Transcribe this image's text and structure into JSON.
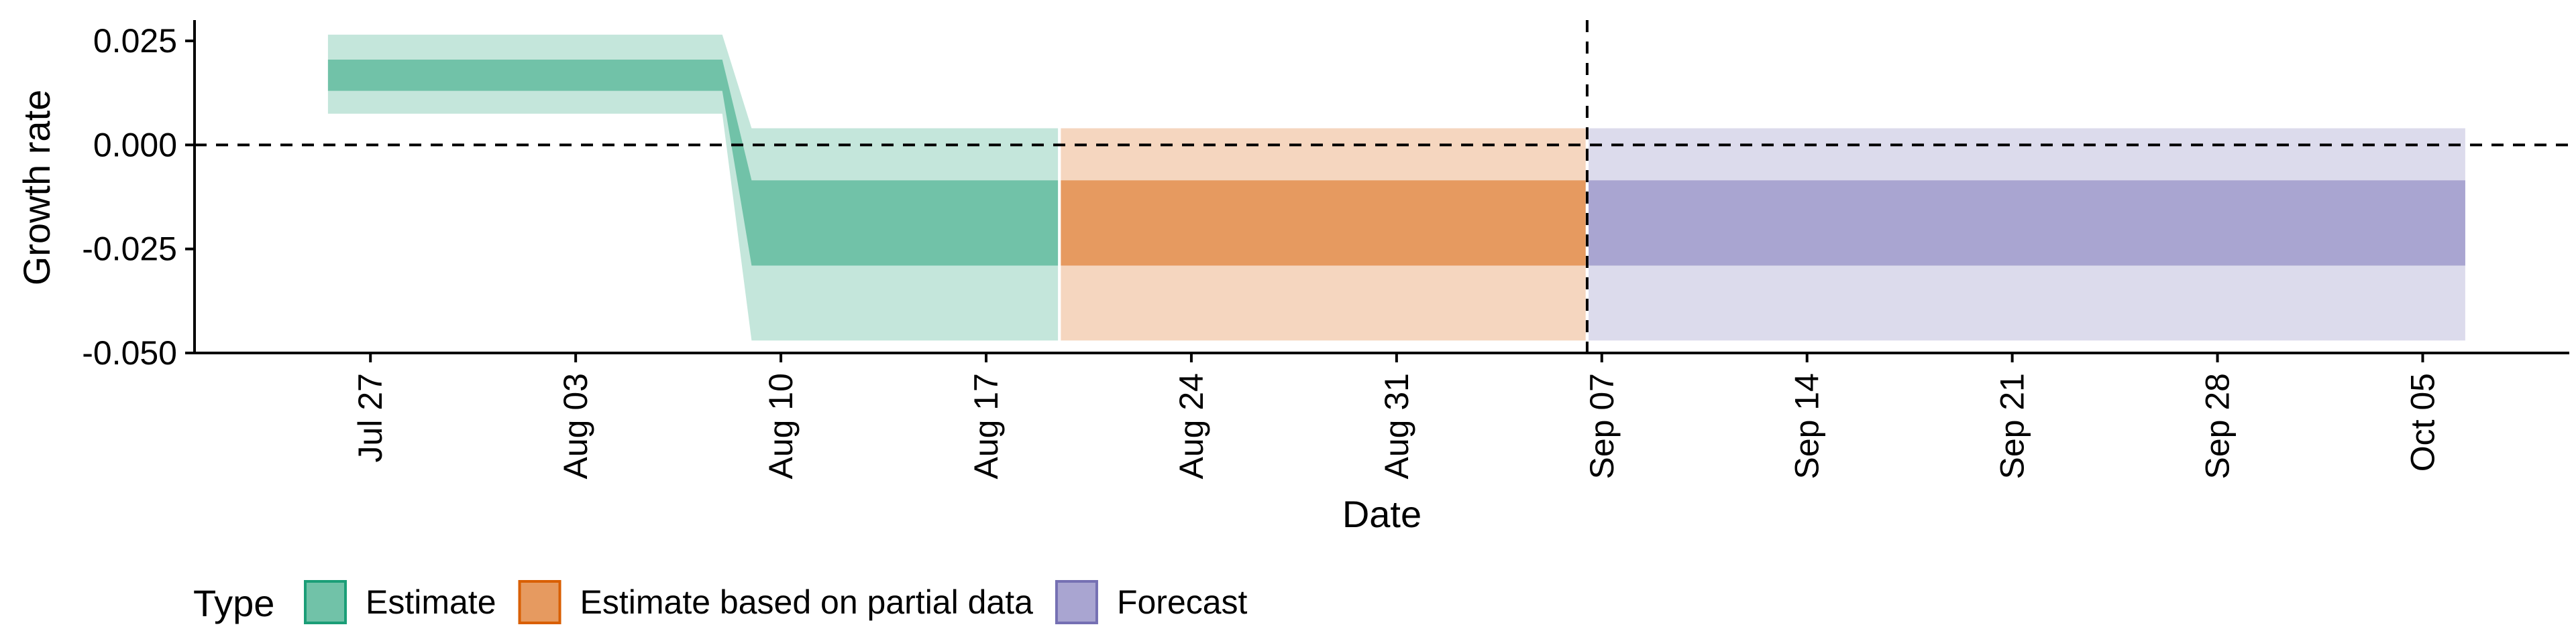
{
  "chart_data": {
    "type": "area",
    "xlabel": "Date",
    "ylabel": "Growth rate",
    "ylim": [
      -0.05,
      0.03
    ],
    "xlim": [
      "2021-07-21",
      "2021-10-10"
    ],
    "y_ticks": [
      {
        "value": 0.025,
        "label": "0.025"
      },
      {
        "value": 0.0,
        "label": "0.000"
      },
      {
        "value": -0.025,
        "label": "-0.025"
      },
      {
        "value": -0.05,
        "label": "-0.050"
      }
    ],
    "x_ticks": [
      {
        "date": "2021-07-27",
        "label": "Jul 27"
      },
      {
        "date": "2021-08-03",
        "label": "Aug 03"
      },
      {
        "date": "2021-08-10",
        "label": "Aug 10"
      },
      {
        "date": "2021-08-17",
        "label": "Aug 17"
      },
      {
        "date": "2021-08-24",
        "label": "Aug 24"
      },
      {
        "date": "2021-08-31",
        "label": "Aug 31"
      },
      {
        "date": "2021-09-07",
        "label": "Sep 07"
      },
      {
        "date": "2021-09-14",
        "label": "Sep 14"
      },
      {
        "date": "2021-09-21",
        "label": "Sep 21"
      },
      {
        "date": "2021-09-28",
        "label": "Sep 28"
      },
      {
        "date": "2021-10-05",
        "label": "Oct 05"
      }
    ],
    "hline": 0,
    "vline_date": "2021-09-06",
    "grid": false,
    "legend": {
      "title": "Type",
      "position": "bottom-left",
      "entries": [
        {
          "label": "Estimate",
          "fill": "#71c2a8",
          "stroke": "#1b9e77"
        },
        {
          "label": "Estimate based on partial data",
          "fill": "#e69a60",
          "stroke": "#d95f02"
        },
        {
          "label": "Forecast",
          "fill": "#a9a5d1",
          "stroke": "#7570b3"
        }
      ]
    },
    "series": [
      {
        "name": "Estimate",
        "color_inner": "#71c2a8",
        "color_outer": "#c4e6db",
        "points": [
          {
            "date": "2021-07-26",
            "lower90": 0.0075,
            "lower50": 0.013,
            "upper50": 0.0205,
            "upper90": 0.0265
          },
          {
            "date": "2021-08-08",
            "lower90": 0.0075,
            "lower50": 0.013,
            "upper50": 0.0205,
            "upper90": 0.0265
          },
          {
            "date": "2021-08-09",
            "lower90": -0.047,
            "lower50": -0.029,
            "upper50": -0.0085,
            "upper90": 0.004
          },
          {
            "date": "2021-08-19",
            "lower90": -0.047,
            "lower50": -0.029,
            "upper50": -0.0085,
            "upper90": 0.004
          }
        ]
      },
      {
        "name": "Estimate based on partial data",
        "color_inner": "#e69a60",
        "color_outer": "#f5d6bf",
        "points": [
          {
            "date": "2021-08-20",
            "lower90": -0.047,
            "lower50": -0.029,
            "upper50": -0.0085,
            "upper90": 0.004
          },
          {
            "date": "2021-09-06",
            "lower90": -0.047,
            "lower50": -0.029,
            "upper50": -0.0085,
            "upper90": 0.004
          }
        ]
      },
      {
        "name": "Forecast",
        "color_inner": "#a9a5d1",
        "color_outer": "#dcdbec",
        "points": [
          {
            "date": "2021-09-07",
            "lower90": -0.047,
            "lower50": -0.029,
            "upper50": -0.0085,
            "upper90": 0.004
          },
          {
            "date": "2021-10-06",
            "lower90": -0.047,
            "lower50": -0.029,
            "upper50": -0.0085,
            "upper90": 0.004
          }
        ]
      }
    ]
  }
}
